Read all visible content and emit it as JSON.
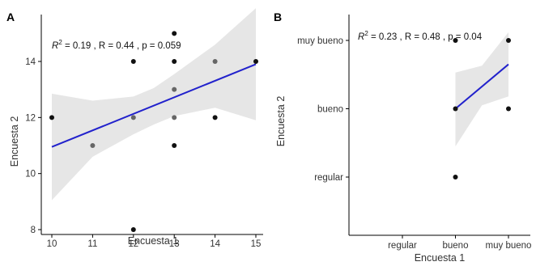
{
  "chart_data": [
    {
      "panel": "A",
      "type": "scatter",
      "xlabel": "Encuesta 1",
      "ylabel": "Encuesta 2",
      "xlim": [
        10,
        15
      ],
      "ylim": [
        7.7,
        15.6
      ],
      "xticks": [
        10,
        11,
        12,
        13,
        14,
        15
      ],
      "yticks": [
        8,
        10,
        12,
        14
      ],
      "points": [
        {
          "x": 10,
          "y": 12,
          "grey": false
        },
        {
          "x": 11,
          "y": 11,
          "grey": true
        },
        {
          "x": 12,
          "y": 14,
          "grey": false
        },
        {
          "x": 12,
          "y": 12,
          "grey": true
        },
        {
          "x": 12,
          "y": 8,
          "grey": false
        },
        {
          "x": 13,
          "y": 15,
          "grey": false
        },
        {
          "x": 13,
          "y": 14,
          "grey": false
        },
        {
          "x": 13,
          "y": 13,
          "grey": true
        },
        {
          "x": 13,
          "y": 12,
          "grey": true
        },
        {
          "x": 13,
          "y": 11,
          "grey": false
        },
        {
          "x": 14,
          "y": 14,
          "grey": true
        },
        {
          "x": 14,
          "y": 12,
          "grey": false
        },
        {
          "x": 15,
          "y": 14,
          "grey": false
        }
      ],
      "fit_line": [
        {
          "x": 10,
          "y": 10.95
        },
        {
          "x": 15,
          "y": 13.9
        }
      ],
      "ci_upper": [
        {
          "x": 10,
          "y": 12.85
        },
        {
          "x": 11,
          "y": 12.6
        },
        {
          "x": 12,
          "y": 12.75
        },
        {
          "x": 12.5,
          "y": 13.05
        },
        {
          "x": 13,
          "y": 13.55
        },
        {
          "x": 14,
          "y": 14.6
        },
        {
          "x": 15,
          "y": 15.9
        }
      ],
      "ci_lower": [
        {
          "x": 10,
          "y": 9.05
        },
        {
          "x": 11,
          "y": 10.6
        },
        {
          "x": 12,
          "y": 11.4
        },
        {
          "x": 12.5,
          "y": 11.75
        },
        {
          "x": 13,
          "y": 12.05
        },
        {
          "x": 14,
          "y": 12.35
        },
        {
          "x": 15,
          "y": 11.9
        }
      ],
      "stat_text": {
        "r2": "0.19",
        "r": "0.44",
        "p": "0.059"
      }
    },
    {
      "panel": "B",
      "type": "scatter",
      "xlabel": "Encuesta 1",
      "ylabel": "Encuesta 2",
      "x_categories": [
        "regular",
        "bueno",
        "muy bueno"
      ],
      "y_categories": [
        "regular",
        "bueno",
        "muy bueno"
      ],
      "xlim": [
        0.2,
        3.15
      ],
      "ylim": [
        0.25,
        3.4
      ],
      "points": [
        {
          "x": 2,
          "y": 3
        },
        {
          "x": 2,
          "y": 2
        },
        {
          "x": 2,
          "y": 1
        },
        {
          "x": 3,
          "y": 3
        },
        {
          "x": 3,
          "y": 2
        }
      ],
      "fit_line": [
        {
          "x": 2,
          "y": 2
        },
        {
          "x": 3,
          "y": 2.65
        }
      ],
      "ci_upper": [
        {
          "x": 2,
          "y": 2.53
        },
        {
          "x": 2.5,
          "y": 2.63
        },
        {
          "x": 3,
          "y": 3.12
        }
      ],
      "ci_lower": [
        {
          "x": 2,
          "y": 1.45
        },
        {
          "x": 2.5,
          "y": 2.05
        },
        {
          "x": 3,
          "y": 2.18
        }
      ],
      "stat_text": {
        "r2": "0.23",
        "r": "0.48",
        "p": "0.04"
      }
    }
  ],
  "labels": {
    "panel_a": "A",
    "panel_b": "B",
    "a_stat_prefix": "R",
    "a_stat_sup": "2",
    "a_stat_rest": " = 0.19 , R = 0.44 , p = 0.059",
    "b_stat_prefix": "R",
    "b_stat_sup": "2",
    "b_stat_rest": " = 0.23 , R = 0.48 , p = 0.04"
  },
  "colors": {
    "fit": "#2222cc",
    "ci": "#e6e6e6",
    "point": "#111111",
    "point_grey": "#666666"
  }
}
